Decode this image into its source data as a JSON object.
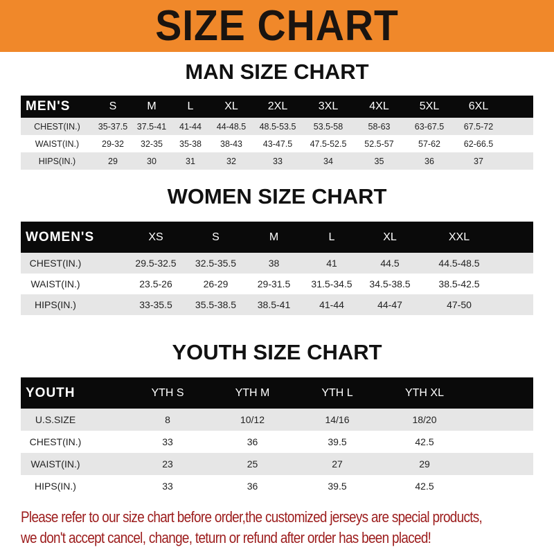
{
  "title": "SIZE CHART",
  "men": {
    "title": "MAN SIZE CHART",
    "header": [
      "MEN'S",
      "S",
      "M",
      "L",
      "XL",
      "2XL",
      "3XL",
      "4XL",
      "5XL",
      "6XL"
    ],
    "rows": [
      [
        "CHEST(IN.)",
        "35-37.5",
        "37.5-41",
        "41-44",
        "44-48.5",
        "48.5-53.5",
        "53.5-58",
        "58-63",
        "63-67.5",
        "67.5-72"
      ],
      [
        "WAIST(IN.)",
        "29-32",
        "32-35",
        "35-38",
        "38-43",
        "43-47.5",
        "47.5-52.5",
        "52.5-57",
        "57-62",
        "62-66.5"
      ],
      [
        "HIPS(IN.)",
        "29",
        "30",
        "31",
        "32",
        "33",
        "34",
        "35",
        "36",
        "37"
      ]
    ]
  },
  "women": {
    "title": "WOMEN SIZE CHART",
    "header": [
      "WOMEN'S",
      "XS",
      "S",
      "M",
      "L",
      "XL",
      "XXL"
    ],
    "rows": [
      [
        "CHEST(IN.)",
        "29.5-32.5",
        "32.5-35.5",
        "38",
        "41",
        "44.5",
        "44.5-48.5"
      ],
      [
        "WAIST(IN.)",
        "23.5-26",
        "26-29",
        "29-31.5",
        "31.5-34.5",
        "34.5-38.5",
        "38.5-42.5"
      ],
      [
        "HIPS(IN.)",
        "33-35.5",
        "35.5-38.5",
        "38.5-41",
        "41-44",
        "44-47",
        "47-50"
      ]
    ]
  },
  "youth": {
    "title": "YOUTH SIZE CHART",
    "header": [
      "YOUTH",
      "YTH S",
      "YTH M",
      "YTH L",
      "YTH XL"
    ],
    "rows": [
      [
        "U.S.SIZE",
        "8",
        "10/12",
        "14/16",
        "18/20"
      ],
      [
        "CHEST(IN.)",
        "33",
        "36",
        "39.5",
        "42.5"
      ],
      [
        "WAIST(IN.)",
        "23",
        "25",
        "27",
        "29"
      ],
      [
        "HIPS(IN.)",
        "33",
        "36",
        "39.5",
        "42.5"
      ]
    ]
  },
  "notice": [
    "Please refer to our size chart before order,the customized jerseys are special products,",
    "we don't accept cancel, change, teturn or refund after order has been placed!"
  ],
  "colors": {
    "banner": "#f0882a",
    "header_row": "#0a0a0a",
    "stripe": "#e6e6e6",
    "notice": "#9c1c1c"
  }
}
